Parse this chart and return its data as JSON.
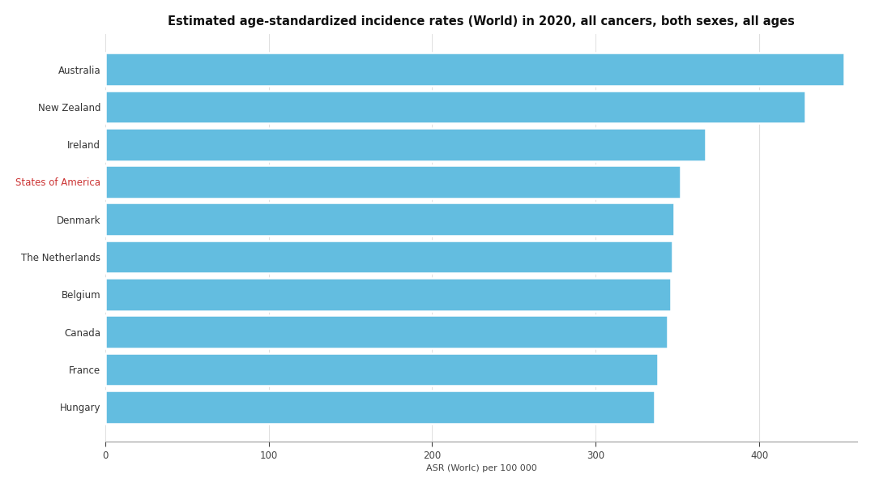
{
  "title": "Estimated age-standardized incidence rates (World) in 2020, all cancers, both sexes, all ages",
  "xlabel": "ASR (Worlc) per 100 000",
  "categories": [
    "Hungary",
    "France",
    "Canada",
    "Belgium",
    "The Netherlands",
    "Denmark",
    "States of America",
    "Ireland",
    "New Zealand",
    "Australia"
  ],
  "values": [
    336,
    338,
    344,
    346,
    347,
    348,
    352,
    367,
    428,
    452
  ],
  "bar_color": "#63BDE0",
  "background_color": "#ffffff",
  "xlim": [
    0,
    460
  ],
  "xticks": [
    0,
    100,
    200,
    300,
    400
  ],
  "title_fontsize": 10.5,
  "label_fontsize": 8.5,
  "tick_fontsize": 8.5,
  "xlabel_fontsize": 8.0
}
